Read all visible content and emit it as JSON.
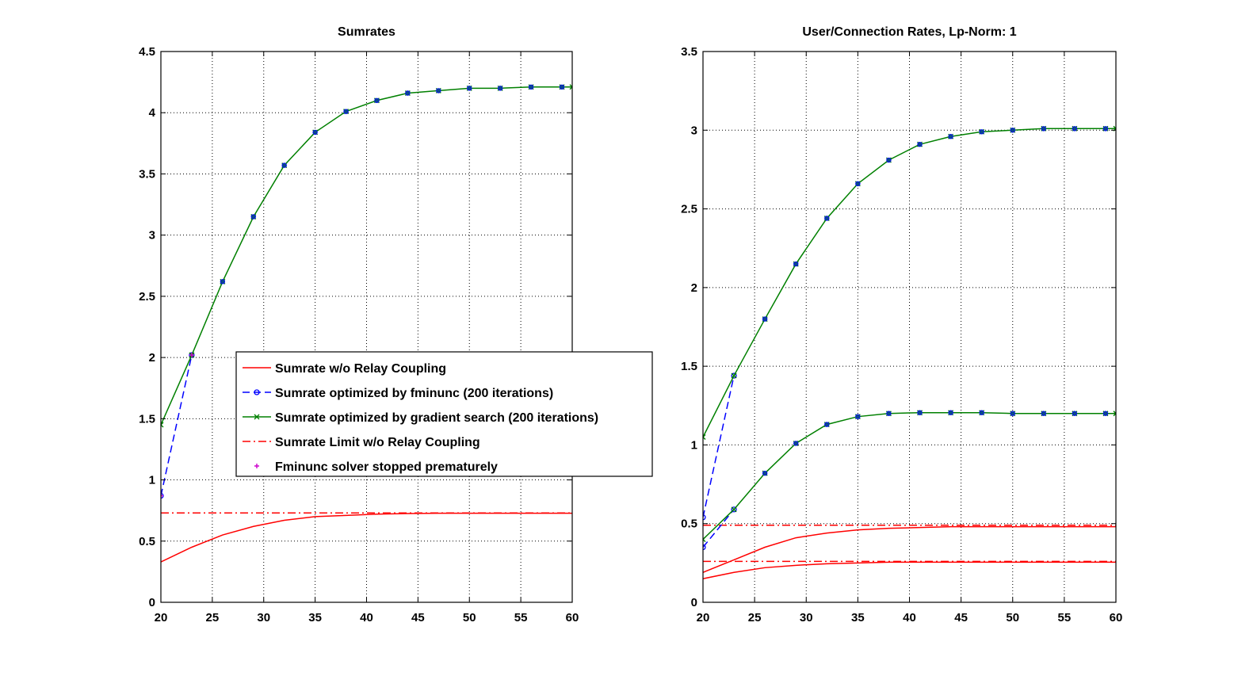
{
  "chart_data": [
    {
      "type": "line",
      "title": "Sumrates",
      "xlabel": "",
      "ylabel": "",
      "xlim": [
        20,
        60
      ],
      "ylim": [
        0,
        4.5
      ],
      "xticks": [
        20,
        25,
        30,
        35,
        40,
        45,
        50,
        55,
        60
      ],
      "yticks": [
        0,
        0.5,
        1,
        1.5,
        2,
        2.5,
        3,
        3.5,
        4,
        4.5
      ],
      "xtick_labels": [
        "20",
        "25",
        "30",
        "35",
        "40",
        "45",
        "50",
        "55",
        "60"
      ],
      "ytick_labels": [
        "0",
        "0.5",
        "1",
        "1.5",
        "2",
        "2.5",
        "3",
        "3.5",
        "4",
        "4.5"
      ],
      "grid": true,
      "legend_placement": "center-right",
      "series": [
        {
          "name": "Sumrate w/o Relay Coupling",
          "color": "#ff0000",
          "style": "solid",
          "marker": "none",
          "x": [
            20,
            23,
            26,
            29,
            32,
            35,
            38,
            41,
            44,
            47,
            50,
            53,
            56,
            59,
            60
          ],
          "y": [
            0.33,
            0.45,
            0.55,
            0.62,
            0.67,
            0.7,
            0.71,
            0.72,
            0.725,
            0.728,
            0.728,
            0.728,
            0.728,
            0.728,
            0.728
          ]
        },
        {
          "name": "Sumrate optimized by fminunc (200 iterations)",
          "color": "#0000ff",
          "style": "dashed",
          "marker": "circle",
          "x": [
            20,
            23
          ],
          "y": [
            0.87,
            2.02
          ]
        },
        {
          "name": "Sumrate optimized by gradient search (200 iterations)",
          "color": "#008000",
          "style": "solid",
          "marker": "x",
          "x": [
            20,
            23,
            26,
            29,
            32,
            35,
            38,
            41,
            44,
            47,
            50,
            53,
            56,
            59,
            60
          ],
          "y": [
            1.45,
            2.02,
            2.62,
            3.15,
            3.57,
            3.84,
            4.01,
            4.1,
            4.16,
            4.18,
            4.2,
            4.2,
            4.21,
            4.21,
            4.21
          ]
        },
        {
          "name": "Sumrate Limit w/o Relay Coupling",
          "color": "#ff0000",
          "style": "dashdot",
          "marker": "none",
          "x": [
            20,
            60
          ],
          "y": [
            0.73,
            0.73
          ]
        },
        {
          "name": "Fminunc solver stopped prematurely",
          "color": "#cc00cc",
          "style": "none",
          "marker": "plus",
          "x": [
            20,
            23
          ],
          "y": [
            0.87,
            2.02
          ]
        }
      ],
      "fill_markers": [
        {
          "color": "#0000ff",
          "x": [
            26,
            29,
            32,
            35,
            38,
            41,
            44,
            47,
            50,
            53,
            56,
            59
          ],
          "y": [
            2.62,
            3.15,
            3.57,
            3.84,
            4.01,
            4.1,
            4.16,
            4.18,
            4.2,
            4.2,
            4.21,
            4.21
          ]
        }
      ]
    },
    {
      "type": "line",
      "title": "User/Connection Rates, Lp-Norm: 1",
      "xlabel": "",
      "ylabel": "",
      "xlim": [
        20,
        60
      ],
      "ylim": [
        0,
        3.5
      ],
      "xticks": [
        20,
        25,
        30,
        35,
        40,
        45,
        50,
        55,
        60
      ],
      "yticks": [
        0,
        0.5,
        1,
        1.5,
        2,
        2.5,
        3,
        3.5
      ],
      "xtick_labels": [
        "20",
        "25",
        "30",
        "35",
        "40",
        "45",
        "50",
        "55",
        "60"
      ],
      "ytick_labels": [
        "0",
        "0.5",
        "1",
        "1.5",
        "2",
        "2.5",
        "3",
        "3.5"
      ],
      "grid": true,
      "series": [
        {
          "color": "#ff0000",
          "style": "solid",
          "marker": "none",
          "x": [
            20,
            23,
            26,
            29,
            32,
            35,
            38,
            41,
            44,
            47,
            50,
            53,
            56,
            59,
            60
          ],
          "y": [
            0.19,
            0.27,
            0.35,
            0.41,
            0.44,
            0.46,
            0.47,
            0.475,
            0.48,
            0.48,
            0.48,
            0.48,
            0.48,
            0.48,
            0.48
          ]
        },
        {
          "color": "#ff0000",
          "style": "solid",
          "marker": "none",
          "x": [
            20,
            23,
            26,
            29,
            32,
            35,
            38,
            41,
            44,
            47,
            50,
            53,
            56,
            59,
            60
          ],
          "y": [
            0.15,
            0.19,
            0.22,
            0.235,
            0.245,
            0.25,
            0.255,
            0.255,
            0.255,
            0.255,
            0.255,
            0.255,
            0.255,
            0.255,
            0.255
          ]
        },
        {
          "color": "#ff0000",
          "style": "dashdot",
          "marker": "none",
          "x": [
            20,
            60
          ],
          "y": [
            0.49,
            0.49
          ]
        },
        {
          "color": "#ff0000",
          "style": "dashdot",
          "marker": "none",
          "x": [
            20,
            60
          ],
          "y": [
            0.26,
            0.26
          ]
        },
        {
          "color": "#0000ff",
          "style": "dashed",
          "marker": "circle",
          "x": [
            20,
            23
          ],
          "y": [
            0.54,
            1.44
          ]
        },
        {
          "color": "#0000ff",
          "style": "dashed",
          "marker": "circle",
          "x": [
            20,
            23
          ],
          "y": [
            0.35,
            0.59
          ]
        },
        {
          "color": "#008000",
          "style": "solid",
          "marker": "x",
          "x": [
            20,
            23,
            26,
            29,
            32,
            35,
            38,
            41,
            44,
            47,
            50,
            53,
            56,
            59,
            60
          ],
          "y": [
            1.05,
            1.44,
            1.8,
            2.15,
            2.44,
            2.66,
            2.81,
            2.91,
            2.96,
            2.99,
            3.0,
            3.01,
            3.01,
            3.01,
            3.01
          ]
        },
        {
          "color": "#008000",
          "style": "solid",
          "marker": "x",
          "x": [
            20,
            23,
            26,
            29,
            32,
            35,
            38,
            41,
            44,
            47,
            50,
            53,
            56,
            59,
            60
          ],
          "y": [
            0.4,
            0.59,
            0.82,
            1.01,
            1.13,
            1.18,
            1.2,
            1.205,
            1.205,
            1.205,
            1.2,
            1.2,
            1.2,
            1.2,
            1.2
          ]
        }
      ],
      "fill_markers": [
        {
          "color": "#0000ff",
          "x": [
            26,
            29,
            32,
            35,
            38,
            41,
            44,
            47,
            50,
            53,
            56,
            59
          ],
          "y": [
            1.8,
            2.15,
            2.44,
            2.66,
            2.81,
            2.91,
            2.96,
            2.99,
            3.0,
            3.01,
            3.01,
            3.01
          ]
        },
        {
          "color": "#0000ff",
          "x": [
            26,
            29,
            32,
            35,
            38,
            41,
            44,
            47,
            50,
            53,
            56,
            59
          ],
          "y": [
            0.82,
            1.01,
            1.13,
            1.18,
            1.2,
            1.205,
            1.205,
            1.205,
            1.2,
            1.2,
            1.2,
            1.2
          ]
        }
      ]
    }
  ]
}
